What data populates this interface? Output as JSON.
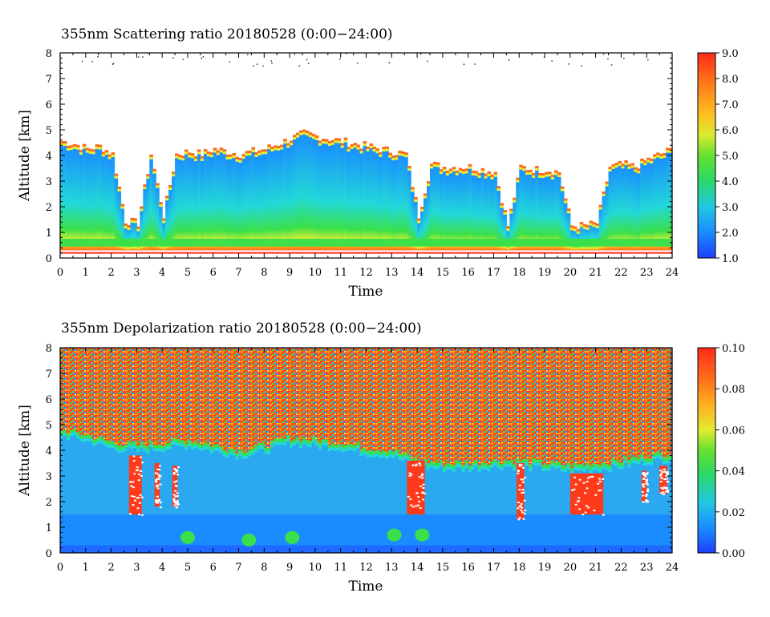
{
  "chart_data": [
    {
      "type": "heatmap",
      "title": "355nm Scattering ratio  20180528 (0:00−24:00)",
      "xlabel": "Time",
      "ylabel": "Altitude [km]",
      "xlim": [
        0,
        24
      ],
      "ylim": [
        0,
        8
      ],
      "x_ticks": [
        "0",
        "1",
        "2",
        "3",
        "4",
        "5",
        "6",
        "7",
        "8",
        "9",
        "10",
        "11",
        "12",
        "13",
        "14",
        "15",
        "16",
        "17",
        "18",
        "19",
        "20",
        "21",
        "22",
        "23",
        "24"
      ],
      "y_ticks": [
        "0",
        "1",
        "2",
        "3",
        "4",
        "5",
        "6",
        "7",
        "8"
      ],
      "colorbar": {
        "range": [
          1.0,
          9.0
        ],
        "ticks": [
          "1.0",
          "2.0",
          "3.0",
          "4.0",
          "5.0",
          "6.0",
          "7.0",
          "8.0",
          "9.0"
        ]
      },
      "grid": false,
      "cloud_top_km": [
        [
          0,
          4.5
        ],
        [
          0.5,
          4.4
        ],
        [
          1,
          4.2
        ],
        [
          1.5,
          4.3
        ],
        [
          2,
          4.0
        ],
        [
          2.5,
          1.4
        ],
        [
          3,
          1.3
        ],
        [
          3.5,
          4.0
        ],
        [
          4,
          1.6
        ],
        [
          4.5,
          4.0
        ],
        [
          5,
          4.1
        ],
        [
          5.5,
          4.0
        ],
        [
          6,
          4.2
        ],
        [
          6.5,
          4.1
        ],
        [
          7,
          4.0
        ],
        [
          7.5,
          4.1
        ],
        [
          8,
          4.2
        ],
        [
          8.5,
          4.4
        ],
        [
          9,
          4.6
        ],
        [
          9.5,
          4.8
        ],
        [
          10,
          4.7
        ],
        [
          10.5,
          4.6
        ],
        [
          11,
          4.5
        ],
        [
          11.5,
          4.4
        ],
        [
          12,
          4.3
        ],
        [
          12.5,
          4.2
        ],
        [
          13,
          4.1
        ],
        [
          13.5,
          4.0
        ],
        [
          14,
          1.6
        ],
        [
          14.5,
          3.6
        ],
        [
          15,
          3.5
        ],
        [
          15.5,
          3.5
        ],
        [
          16,
          3.5
        ],
        [
          16.5,
          3.4
        ],
        [
          17,
          3.3
        ],
        [
          17.5,
          1.2
        ],
        [
          18,
          3.5
        ],
        [
          18.5,
          3.4
        ],
        [
          19,
          3.4
        ],
        [
          19.5,
          3.3
        ],
        [
          20,
          1.2
        ],
        [
          20.5,
          1.2
        ],
        [
          21,
          1.3
        ],
        [
          21.5,
          3.5
        ],
        [
          22,
          3.6
        ],
        [
          22.5,
          3.5
        ],
        [
          23,
          3.8
        ],
        [
          23.5,
          4.0
        ],
        [
          24,
          4.2
        ]
      ]
    },
    {
      "type": "heatmap",
      "title": "355nm Depolarization ratio  20180528 (0:00−24:00)",
      "xlabel": "Time",
      "ylabel": "Altitude [km]",
      "xlim": [
        0,
        24
      ],
      "ylim": [
        0,
        8
      ],
      "x_ticks": [
        "0",
        "1",
        "2",
        "3",
        "4",
        "5",
        "6",
        "7",
        "8",
        "9",
        "10",
        "11",
        "12",
        "13",
        "14",
        "15",
        "16",
        "17",
        "18",
        "19",
        "20",
        "21",
        "22",
        "23",
        "24"
      ],
      "y_ticks": [
        "0",
        "1",
        "2",
        "3",
        "4",
        "5",
        "6",
        "7",
        "8"
      ],
      "colorbar": {
        "range": [
          0.0,
          0.1
        ],
        "ticks": [
          "0.00",
          "0.02",
          "0.04",
          "0.06",
          "0.08",
          "0.10"
        ]
      },
      "grid": false,
      "noise_boundary_km": [
        [
          0,
          4.8
        ],
        [
          1,
          4.6
        ],
        [
          2,
          4.3
        ],
        [
          3,
          4.2
        ],
        [
          4,
          4.3
        ],
        [
          5,
          4.4
        ],
        [
          6,
          4.2
        ],
        [
          7,
          4.0
        ],
        [
          8,
          4.2
        ],
        [
          9,
          4.5
        ],
        [
          10,
          4.4
        ],
        [
          11,
          4.3
        ],
        [
          12,
          4.1
        ],
        [
          13,
          4.0
        ],
        [
          14,
          3.6
        ],
        [
          15,
          3.5
        ],
        [
          16,
          3.5
        ],
        [
          17,
          3.6
        ],
        [
          18,
          3.6
        ],
        [
          19,
          3.5
        ],
        [
          20,
          3.4
        ],
        [
          21,
          3.5
        ],
        [
          22,
          3.6
        ],
        [
          23,
          3.8
        ],
        [
          24,
          3.9
        ]
      ]
    }
  ],
  "colors": {
    "colormap": [
      "#1f3fff",
      "#1aa0ff",
      "#22d8d8",
      "#3ae04a",
      "#9ae83a",
      "#f0f030",
      "#ffb020",
      "#ff6a1a",
      "#ff2a1a"
    ]
  }
}
